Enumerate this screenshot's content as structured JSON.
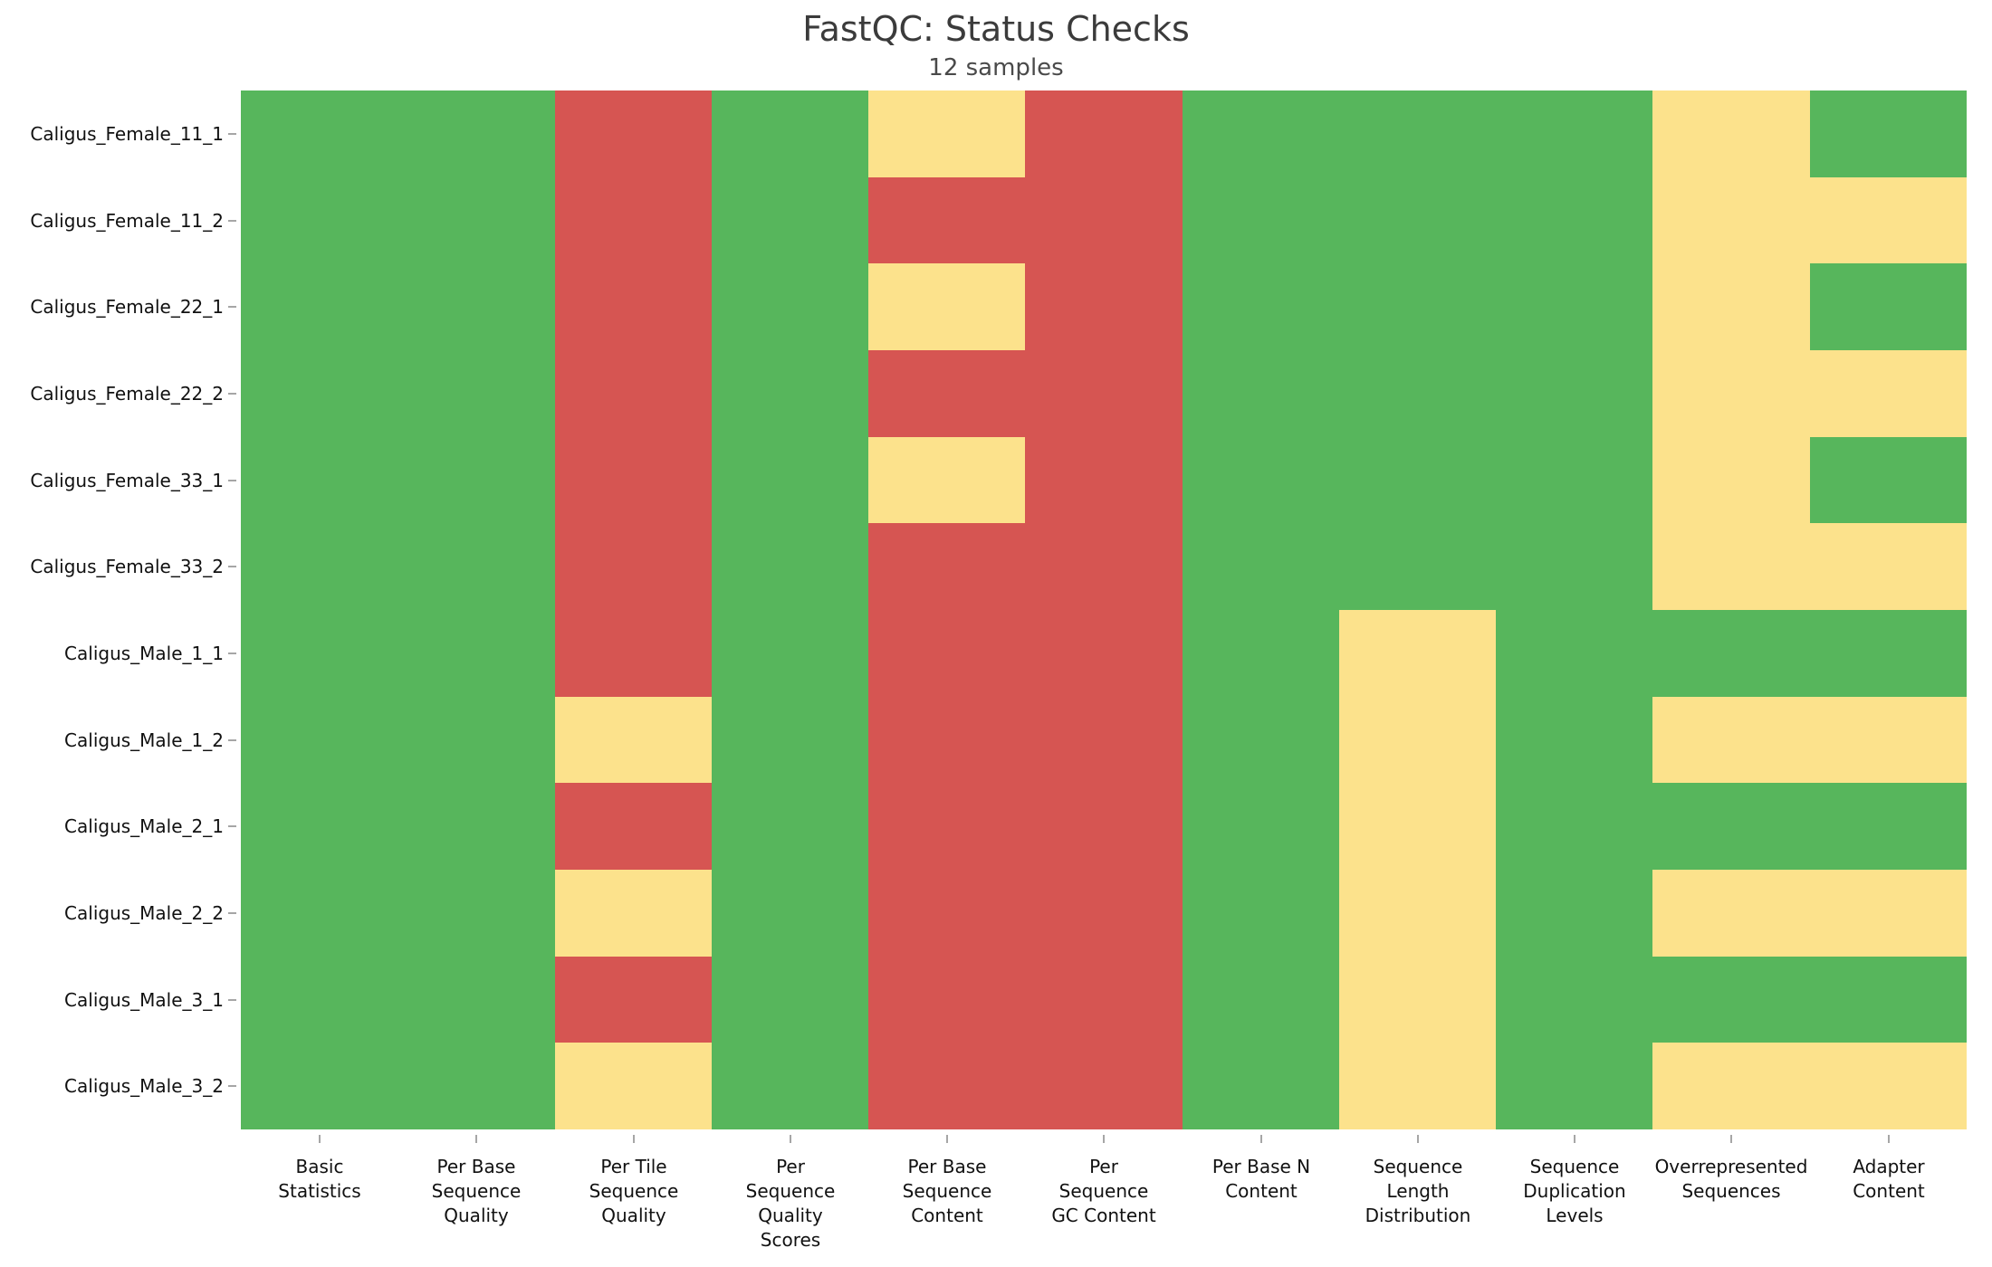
{
  "title": "FastQC: Status Checks",
  "subtitle": "12 samples",
  "status_colors": {
    "pass": "#57b65c",
    "warn": "#fce28c",
    "fail": "#d65552"
  },
  "chart_data": {
    "type": "heatmap",
    "title": "FastQC: Status Checks",
    "subtitle": "12 samples",
    "legend_position": "none",
    "grid": false,
    "rows": [
      "Caligus_Female_11_1",
      "Caligus_Female_11_2",
      "Caligus_Female_22_1",
      "Caligus_Female_22_2",
      "Caligus_Female_33_1",
      "Caligus_Female_33_2",
      "Caligus_Male_1_1",
      "Caligus_Male_1_2",
      "Caligus_Male_2_1",
      "Caligus_Male_2_2",
      "Caligus_Male_3_1",
      "Caligus_Male_3_2"
    ],
    "columns": [
      "Basic Statistics",
      "Per Base Sequence Quality",
      "Per Tile Sequence Quality",
      "Per Sequence Quality Scores",
      "Per Base Sequence Content",
      "Per Sequence GC Content",
      "Per Base N Content",
      "Sequence Length Distribution",
      "Sequence Duplication Levels",
      "Overrepresented Sequences",
      "Adapter Content"
    ],
    "column_label_lines": [
      [
        "Basic",
        "Statistics"
      ],
      [
        "Per Base",
        "Sequence",
        "Quality"
      ],
      [
        "Per Tile",
        "Sequence",
        "Quality"
      ],
      [
        "Per",
        "Sequence",
        "Quality",
        "Scores"
      ],
      [
        "Per Base",
        "Sequence",
        "Content"
      ],
      [
        "Per",
        "Sequence",
        "GC Content"
      ],
      [
        "Per Base N",
        "Content"
      ],
      [
        "Sequence",
        "Length",
        "Distribution"
      ],
      [
        "Sequence",
        "Duplication",
        "Levels"
      ],
      [
        "Overrepresented",
        "Sequences"
      ],
      [
        "Adapter",
        "Content"
      ]
    ],
    "status_colors": {
      "pass": "#57b65c",
      "warn": "#fce28c",
      "fail": "#d65552"
    },
    "values": [
      [
        "pass",
        "pass",
        "fail",
        "pass",
        "warn",
        "fail",
        "pass",
        "pass",
        "pass",
        "warn",
        "pass"
      ],
      [
        "pass",
        "pass",
        "fail",
        "pass",
        "fail",
        "fail",
        "pass",
        "pass",
        "pass",
        "warn",
        "warn"
      ],
      [
        "pass",
        "pass",
        "fail",
        "pass",
        "warn",
        "fail",
        "pass",
        "pass",
        "pass",
        "warn",
        "pass"
      ],
      [
        "pass",
        "pass",
        "fail",
        "pass",
        "fail",
        "fail",
        "pass",
        "pass",
        "pass",
        "warn",
        "warn"
      ],
      [
        "pass",
        "pass",
        "fail",
        "pass",
        "warn",
        "fail",
        "pass",
        "pass",
        "pass",
        "warn",
        "pass"
      ],
      [
        "pass",
        "pass",
        "fail",
        "pass",
        "fail",
        "fail",
        "pass",
        "pass",
        "pass",
        "warn",
        "warn"
      ],
      [
        "pass",
        "pass",
        "fail",
        "pass",
        "fail",
        "fail",
        "pass",
        "warn",
        "pass",
        "pass",
        "pass"
      ],
      [
        "pass",
        "pass",
        "warn",
        "pass",
        "fail",
        "fail",
        "pass",
        "warn",
        "pass",
        "warn",
        "warn"
      ],
      [
        "pass",
        "pass",
        "fail",
        "pass",
        "fail",
        "fail",
        "pass",
        "warn",
        "pass",
        "pass",
        "pass"
      ],
      [
        "pass",
        "pass",
        "warn",
        "pass",
        "fail",
        "fail",
        "pass",
        "warn",
        "pass",
        "warn",
        "warn"
      ],
      [
        "pass",
        "pass",
        "fail",
        "pass",
        "fail",
        "fail",
        "pass",
        "warn",
        "pass",
        "pass",
        "pass"
      ],
      [
        "pass",
        "pass",
        "warn",
        "pass",
        "fail",
        "fail",
        "pass",
        "warn",
        "pass",
        "warn",
        "warn"
      ]
    ]
  }
}
